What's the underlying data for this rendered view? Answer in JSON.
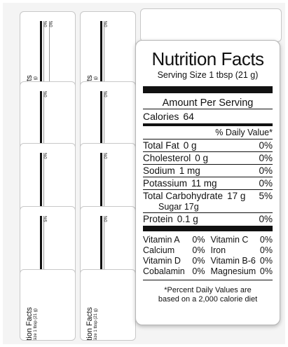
{
  "label": {
    "title": "Nutrition Facts",
    "serving": "Serving Size 1 tbsp (21 g)",
    "amount_per_serving": "Amount Per Serving",
    "calories_label": "Calories",
    "calories_value": "64",
    "dv_header": "% Daily Value*",
    "nutrients": [
      {
        "name": "Total Fat",
        "amount": "0 g",
        "pct": "0%"
      },
      {
        "name": "Cholesterol",
        "amount": "0 g",
        "pct": "0%"
      },
      {
        "name": "Sodium",
        "amount": "1 mg",
        "pct": "0%"
      },
      {
        "name": "Potassium",
        "amount": "11 mg",
        "pct": "0%"
      },
      {
        "name": "Total Carbohydrate",
        "amount": "17 g",
        "pct": "5%"
      }
    ],
    "sugar": "Sugar 17g",
    "protein": {
      "name": "Protein",
      "amount": "0.1 g",
      "pct": "0%"
    },
    "vitamins": [
      {
        "name": "Vitamin A",
        "pct": "0%"
      },
      {
        "name": "Vitamin C",
        "pct": "0%"
      },
      {
        "name": "Calcium",
        "pct": "0%"
      },
      {
        "name": "Iron",
        "pct": "0%"
      },
      {
        "name": "Vitamin D",
        "pct": "0%"
      },
      {
        "name": "Vitamin B-6",
        "pct": "0%"
      },
      {
        "name": "Cobalamin",
        "pct": "0%"
      },
      {
        "name": "Magnesium",
        "pct": "0%"
      }
    ],
    "footnote_1": "*Percent Daily Values are",
    "footnote_2": "based on a 2,000 calorie diet"
  }
}
